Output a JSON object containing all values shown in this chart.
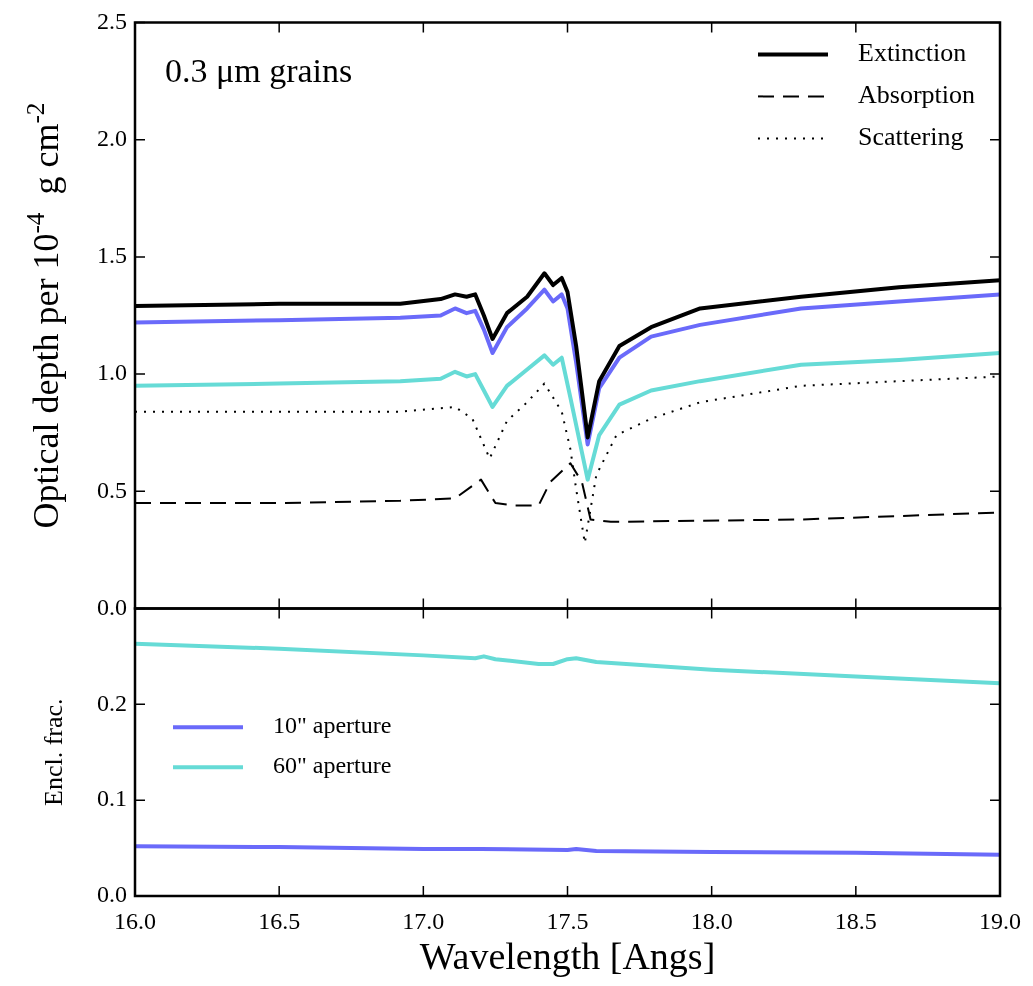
{
  "chart_data": [
    {
      "type": "line",
      "ylabel": "Optical depth per 10$^{-4}$  g cm$^{-2}$",
      "annotations": [
        "0.3 μm grains"
      ],
      "xlim": [
        16.0,
        19.0
      ],
      "xticks": [
        16,
        16.5,
        17,
        17.5,
        18,
        18.5,
        19
      ],
      "ylim": [
        0.0,
        2.5
      ],
      "yticks": [
        {
          "value": 0,
          "label": "0.0"
        },
        0.5,
        {
          "value": 1,
          "label": "1.0"
        },
        1.5,
        {
          "value": 2,
          "label": "2.0"
        },
        2.5
      ],
      "tick_labels": "y",
      "grid": false,
      "legend": "top right",
      "marker": "none",
      "series": [
        {
          "name": "Extinction",
          "color": "#000000",
          "line_style": "solid",
          "x": [
            16.0,
            16.5,
            16.92,
            17.06,
            17.11,
            17.15,
            17.18,
            17.21,
            17.24,
            17.29,
            17.36,
            17.42,
            17.45,
            17.48,
            17.5,
            17.53,
            17.57,
            17.61,
            17.68,
            17.79,
            17.96,
            18.31,
            18.65,
            19.0
          ],
          "values": [
            1.29,
            1.3,
            1.3,
            1.32,
            1.34,
            1.33,
            1.34,
            1.25,
            1.15,
            1.26,
            1.33,
            1.43,
            1.38,
            1.41,
            1.35,
            1.12,
            0.73,
            0.97,
            1.12,
            1.2,
            1.28,
            1.33,
            1.37,
            1.4
          ]
        },
        {
          "name": "Absorption",
          "color": "#000000",
          "line_style": "dashed",
          "x": [
            16.0,
            16.5,
            16.92,
            17.11,
            17.2,
            17.25,
            17.32,
            17.4,
            17.44,
            17.51,
            17.55,
            17.58,
            17.65,
            18.31,
            19.0
          ],
          "values": [
            0.45,
            0.45,
            0.46,
            0.47,
            0.55,
            0.45,
            0.44,
            0.44,
            0.54,
            0.62,
            0.54,
            0.38,
            0.37,
            0.38,
            0.41
          ]
        },
        {
          "name": "Scattering",
          "color": "#000000",
          "line_style": "dotted",
          "x": [
            16.0,
            16.5,
            16.92,
            17.11,
            17.17,
            17.23,
            17.29,
            17.36,
            17.42,
            17.48,
            17.51,
            17.53,
            17.56,
            17.6,
            17.67,
            17.79,
            17.96,
            18.31,
            18.65,
            19.0
          ],
          "values": [
            0.84,
            0.84,
            0.84,
            0.86,
            0.81,
            0.64,
            0.8,
            0.88,
            0.96,
            0.84,
            0.68,
            0.51,
            0.28,
            0.57,
            0.74,
            0.81,
            0.88,
            0.95,
            0.97,
            0.99
          ]
        },
        {
          "color": "#6a6afa",
          "line_style": "solid",
          "x": [
            16.0,
            16.5,
            16.92,
            17.06,
            17.11,
            17.15,
            17.18,
            17.21,
            17.24,
            17.29,
            17.36,
            17.42,
            17.45,
            17.48,
            17.5,
            17.53,
            17.57,
            17.61,
            17.68,
            17.79,
            17.96,
            18.31,
            18.65,
            19.0
          ],
          "values": [
            1.22,
            1.23,
            1.24,
            1.25,
            1.28,
            1.26,
            1.27,
            1.19,
            1.09,
            1.2,
            1.28,
            1.36,
            1.31,
            1.34,
            1.28,
            1.05,
            0.7,
            0.94,
            1.07,
            1.16,
            1.21,
            1.28,
            1.31,
            1.34
          ]
        },
        {
          "color": "#66dbd6",
          "line_style": "solid",
          "x": [
            16.0,
            16.5,
            16.92,
            17.06,
            17.11,
            17.15,
            17.18,
            17.21,
            17.24,
            17.29,
            17.36,
            17.42,
            17.45,
            17.48,
            17.51,
            17.57,
            17.61,
            17.68,
            17.79,
            17.96,
            18.31,
            18.65,
            19.0
          ],
          "values": [
            0.95,
            0.96,
            0.97,
            0.98,
            1.01,
            0.99,
            1.0,
            0.93,
            0.86,
            0.95,
            1.02,
            1.08,
            1.04,
            1.07,
            0.9,
            0.55,
            0.74,
            0.87,
            0.93,
            0.97,
            1.04,
            1.06,
            1.09
          ]
        }
      ]
    },
    {
      "type": "line",
      "xlabel": "Wavelength [Angs]",
      "ylabel": "Encl. frac.",
      "xlim": [
        16.0,
        19.0
      ],
      "xticks": [
        {
          "value": 16,
          "label": "16.0"
        },
        16.5,
        {
          "value": 17,
          "label": "17.0"
        },
        17.5,
        {
          "value": 18,
          "label": "18.0"
        },
        18.5,
        {
          "value": 19,
          "label": "19.0"
        }
      ],
      "ylim": [
        0.0,
        0.3
      ],
      "yticks": [
        {
          "value": 0,
          "label": "0.0"
        },
        0.1,
        0.2
      ],
      "grid": false,
      "legend": "left",
      "marker": "none",
      "series": [
        {
          "name": "10\" aperture",
          "color": "#6a6afa",
          "line_style": "solid",
          "x": [
            16.0,
            16.5,
            17.0,
            17.2,
            17.5,
            17.53,
            17.6,
            18.0,
            18.5,
            19.0
          ],
          "values": [
            0.052,
            0.051,
            0.049,
            0.049,
            0.048,
            0.049,
            0.047,
            0.046,
            0.045,
            0.043
          ]
        },
        {
          "name": "60\" aperture",
          "color": "#66dbd6",
          "line_style": "solid",
          "x": [
            16.0,
            16.5,
            17.0,
            17.18,
            17.21,
            17.25,
            17.4,
            17.45,
            17.5,
            17.53,
            17.6,
            18.0,
            18.5,
            19.0
          ],
          "values": [
            0.263,
            0.258,
            0.251,
            0.248,
            0.25,
            0.247,
            0.242,
            0.242,
            0.247,
            0.248,
            0.244,
            0.236,
            0.229,
            0.222
          ]
        }
      ]
    }
  ]
}
